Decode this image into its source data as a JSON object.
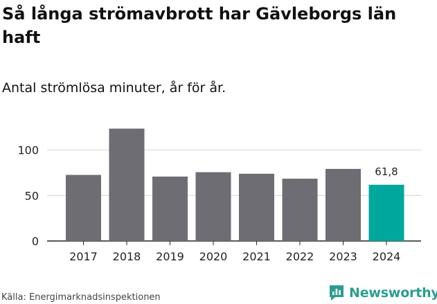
{
  "title": "Så långa strömavbrott har Gävleborgs län haft",
  "subtitle": "Antal strömlösa minuter, år för år.",
  "source": "Källa: Energimarknadsinspektionen",
  "brand": {
    "name": "Newsworthy",
    "icon": "newsworthy-logo-icon"
  },
  "colors": {
    "bar": "#6e6d73",
    "highlight": "#00a79d",
    "grid": "#d4d4d4",
    "axis": "#222222",
    "brand": "#2a9d8f"
  },
  "chart_data": {
    "type": "bar",
    "title": "Så långa strömavbrott har Gävleborgs län haft",
    "subtitle": "Antal strömlösa minuter, år för år.",
    "xlabel": "",
    "ylabel": "",
    "categories": [
      "2017",
      "2018",
      "2019",
      "2020",
      "2021",
      "2022",
      "2023",
      "2024"
    ],
    "values": [
      72.6,
      123.5,
      70.8,
      75.6,
      73.9,
      68.5,
      79.2,
      61.8
    ],
    "highlight_index": 7,
    "data_labels": [
      {
        "index": 7,
        "text": "61,8"
      }
    ],
    "ylim": [
      0,
      125
    ],
    "yticks": [
      0,
      50,
      100
    ],
    "ytick_labels": [
      "0",
      "50",
      "100"
    ],
    "grid": true,
    "legend": "none"
  }
}
